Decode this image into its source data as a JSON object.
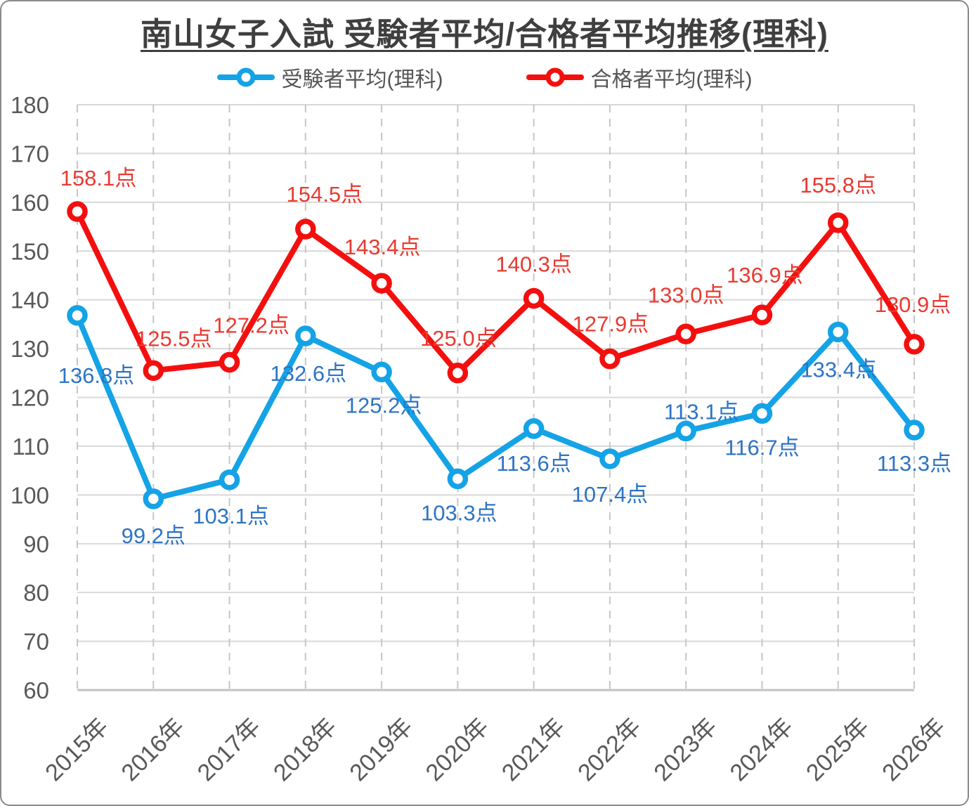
{
  "title": "南山女子入試 受験者平均/合格者平均推移(理科)",
  "legend": {
    "items": [
      {
        "label": "受験者平均(理科)",
        "color": "#14A3E6"
      },
      {
        "label": "合格者平均(理科)",
        "color": "#F40F0F"
      }
    ]
  },
  "chart_data": {
    "type": "line",
    "title": "南山女子入試 受験者平均/合格者平均推移(理科)",
    "categories": [
      "2015年",
      "2016年",
      "2017年",
      "2018年",
      "2019年",
      "2020年",
      "2021年",
      "2022年",
      "2023年",
      "2024年",
      "2025年",
      "2026年"
    ],
    "series": [
      {
        "name": "受験者平均(理科)",
        "line_color": "#14A3E6",
        "label_color": "#2D74C4",
        "values": [
          136.8,
          99.2,
          103.1,
          132.6,
          125.2,
          103.3,
          113.6,
          107.4,
          113.1,
          116.7,
          133.4,
          113.3
        ]
      },
      {
        "name": "合格者平均(理科)",
        "line_color": "#F40F0F",
        "label_color": "#E93A31",
        "values": [
          158.1,
          125.5,
          127.2,
          154.5,
          143.4,
          125.0,
          140.3,
          127.9,
          133.0,
          136.9,
          155.8,
          130.9
        ]
      }
    ],
    "ylim": [
      60,
      180
    ],
    "ytick_step": 10,
    "yticks": [
      60,
      70,
      80,
      90,
      100,
      110,
      120,
      130,
      140,
      150,
      160,
      170,
      180
    ],
    "value_suffix": "点",
    "grid": {
      "horizontal": "solid",
      "vertical": "dashed"
    },
    "legend_position": "top",
    "axis_text_color": "#595959",
    "grid_solid_color": "#D8D8D8",
    "grid_dashed_color": "#C6C6C6",
    "axis_line_color": "#C2C2C2",
    "marker_fill": "#FFFFFF"
  }
}
